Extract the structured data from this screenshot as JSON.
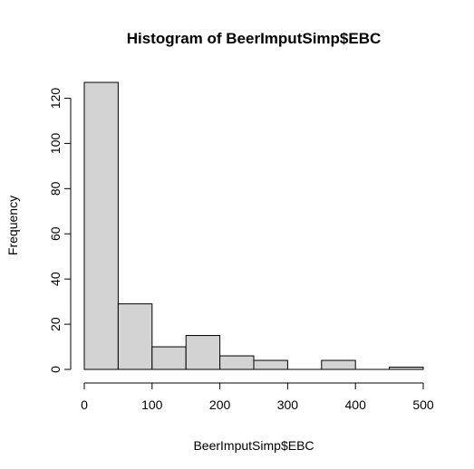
{
  "chart_data": {
    "type": "bar",
    "title": "Histogram of BeerImputSimp$EBC",
    "xlabel": "BeerImputSimp$EBC",
    "ylabel": "Frequency",
    "bins": [
      {
        "start": 0,
        "end": 50,
        "count": 127
      },
      {
        "start": 50,
        "end": 100,
        "count": 29
      },
      {
        "start": 100,
        "end": 150,
        "count": 10
      },
      {
        "start": 150,
        "end": 200,
        "count": 15
      },
      {
        "start": 200,
        "end": 250,
        "count": 6
      },
      {
        "start": 250,
        "end": 300,
        "count": 4
      },
      {
        "start": 300,
        "end": 350,
        "count": 0
      },
      {
        "start": 350,
        "end": 400,
        "count": 4
      },
      {
        "start": 400,
        "end": 450,
        "count": 0
      },
      {
        "start": 450,
        "end": 500,
        "count": 1
      }
    ],
    "xlim": [
      0,
      500
    ],
    "ylim": [
      0,
      127
    ],
    "x_ticks": [
      0,
      100,
      200,
      300,
      400,
      500
    ],
    "y_ticks": [
      0,
      20,
      40,
      60,
      80,
      100,
      120
    ],
    "bar_color": "#d3d3d3",
    "grid": false
  }
}
